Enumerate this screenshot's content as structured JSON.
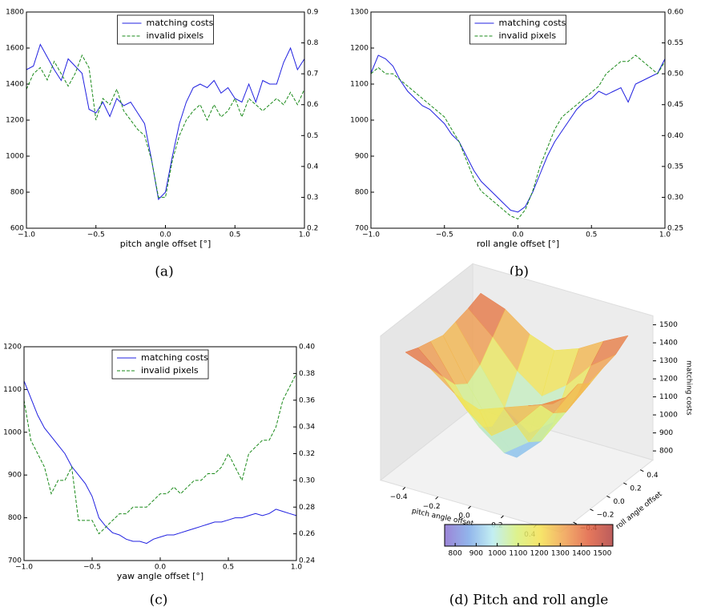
{
  "chart_data": [
    {
      "type": "line",
      "caption": "(a)",
      "xlabel": "pitch angle offset [°]",
      "legend": "upper center",
      "xlim": [
        -1,
        1
      ],
      "xticks": [
        {
          "value": -1,
          "label": "−1.0"
        },
        {
          "value": -0.5,
          "label": "−0.5"
        },
        {
          "value": 0,
          "label": "0.0"
        },
        {
          "value": 0.5,
          "label": "0.5"
        },
        {
          "value": 1,
          "label": "1.0"
        }
      ],
      "ylim": [
        600,
        1800
      ],
      "yticks": [
        600,
        800,
        1000,
        1200,
        1400,
        1600,
        1800
      ],
      "y2lim": [
        0.2,
        0.9
      ],
      "y2ticks": [
        0.2,
        0.3,
        0.4,
        0.5,
        0.6,
        0.7,
        0.8,
        0.9
      ],
      "x": [
        -1,
        -0.95,
        -0.9,
        -0.85,
        -0.8,
        -0.75,
        -0.7,
        -0.65,
        -0.6,
        -0.55,
        -0.5,
        -0.45,
        -0.4,
        -0.35,
        -0.3,
        -0.25,
        -0.2,
        -0.15,
        -0.1,
        -0.05,
        0,
        0.05,
        0.1,
        0.15,
        0.2,
        0.25,
        0.3,
        0.35,
        0.4,
        0.45,
        0.5,
        0.55,
        0.6,
        0.65,
        0.7,
        0.75,
        0.8,
        0.85,
        0.9,
        0.95,
        1
      ],
      "series": [
        {
          "name": "matching costs",
          "color": "#2020e0",
          "linestyle": "solid",
          "values": [
            1480,
            1500,
            1620,
            1550,
            1480,
            1420,
            1540,
            1500,
            1460,
            1260,
            1240,
            1300,
            1220,
            1320,
            1280,
            1300,
            1240,
            1180,
            980,
            760,
            800,
            1000,
            1180,
            1300,
            1380,
            1400,
            1380,
            1420,
            1350,
            1380,
            1320,
            1300,
            1400,
            1300,
            1420,
            1400,
            1400,
            1520,
            1600,
            1480,
            1540
          ]
        },
        {
          "name": "invalid pixels",
          "color": "#1a8a1a",
          "linestyle": "dashed",
          "axis": "y2",
          "values": [
            0.65,
            0.7,
            0.72,
            0.68,
            0.74,
            0.7,
            0.66,
            0.7,
            0.76,
            0.72,
            0.55,
            0.62,
            0.6,
            0.65,
            0.58,
            0.55,
            0.52,
            0.5,
            0.42,
            0.3,
            0.3,
            0.42,
            0.5,
            0.55,
            0.58,
            0.6,
            0.55,
            0.6,
            0.56,
            0.58,
            0.62,
            0.56,
            0.62,
            0.6,
            0.58,
            0.6,
            0.62,
            0.6,
            0.64,
            0.6,
            0.65
          ]
        }
      ]
    },
    {
      "type": "line",
      "caption": "(b)",
      "xlabel": "roll angle offset [°]",
      "legend": "upper center",
      "xlim": [
        -1,
        1
      ],
      "xticks": [
        {
          "value": -1,
          "label": "−1.0"
        },
        {
          "value": -0.5,
          "label": "−0.5"
        },
        {
          "value": 0,
          "label": "0.0"
        },
        {
          "value": 0.5,
          "label": "0.5"
        },
        {
          "value": 1,
          "label": "1.0"
        }
      ],
      "ylim": [
        700,
        1300
      ],
      "yticks": [
        700,
        800,
        900,
        1000,
        1100,
        1200,
        1300
      ],
      "y2lim": [
        0.25,
        0.6
      ],
      "y2ticks": [
        0.25,
        {
          "value": 0.3,
          "label": "0.30"
        },
        0.35,
        {
          "value": 0.4,
          "label": "0.40"
        },
        0.45,
        {
          "value": 0.5,
          "label": "0.50"
        },
        0.55,
        {
          "value": 0.6,
          "label": "0.60"
        }
      ],
      "x": [
        -1,
        -0.95,
        -0.9,
        -0.85,
        -0.8,
        -0.75,
        -0.7,
        -0.65,
        -0.6,
        -0.55,
        -0.5,
        -0.45,
        -0.4,
        -0.35,
        -0.3,
        -0.25,
        -0.2,
        -0.15,
        -0.1,
        -0.05,
        0,
        0.05,
        0.1,
        0.15,
        0.2,
        0.25,
        0.3,
        0.35,
        0.4,
        0.45,
        0.5,
        0.55,
        0.6,
        0.65,
        0.7,
        0.75,
        0.8,
        0.85,
        0.9,
        0.95,
        1
      ],
      "series": [
        {
          "name": "matching costs",
          "color": "#2020e0",
          "linestyle": "solid",
          "values": [
            1130,
            1180,
            1170,
            1150,
            1110,
            1080,
            1060,
            1040,
            1030,
            1010,
            990,
            960,
            940,
            900,
            860,
            830,
            810,
            790,
            770,
            750,
            745,
            760,
            800,
            850,
            900,
            940,
            970,
            1000,
            1030,
            1050,
            1060,
            1080,
            1070,
            1080,
            1090,
            1050,
            1100,
            1110,
            1120,
            1130,
            1170
          ]
        },
        {
          "name": "invalid pixels",
          "color": "#1a8a1a",
          "linestyle": "dashed",
          "axis": "y2",
          "values": [
            0.5,
            0.51,
            0.5,
            0.5,
            0.49,
            0.48,
            0.47,
            0.46,
            0.45,
            0.44,
            0.43,
            0.41,
            0.39,
            0.36,
            0.33,
            0.31,
            0.3,
            0.29,
            0.28,
            0.27,
            0.265,
            0.28,
            0.31,
            0.35,
            0.38,
            0.41,
            0.43,
            0.44,
            0.45,
            0.46,
            0.47,
            0.48,
            0.5,
            0.51,
            0.52,
            0.52,
            0.53,
            0.52,
            0.51,
            0.5,
            0.52
          ]
        }
      ]
    },
    {
      "type": "line",
      "caption": "(c)",
      "xlabel": "yaw angle offset [°]",
      "legend": "upper center",
      "xlim": [
        -1,
        1
      ],
      "xticks": [
        {
          "value": -1,
          "label": "−1.0"
        },
        {
          "value": -0.5,
          "label": "−0.5"
        },
        {
          "value": 0,
          "label": "0.0"
        },
        {
          "value": 0.5,
          "label": "0.5"
        },
        {
          "value": 1,
          "label": "1.0"
        }
      ],
      "ylim": [
        700,
        1200
      ],
      "yticks": [
        700,
        800,
        900,
        1000,
        1100,
        1200
      ],
      "y2lim": [
        0.24,
        0.4
      ],
      "y2ticks": [
        0.24,
        0.26,
        0.28,
        {
          "value": 0.3,
          "label": "0.30"
        },
        0.32,
        0.34,
        0.36,
        0.38,
        {
          "value": 0.4,
          "label": "0.40"
        }
      ],
      "x": [
        -1,
        -0.95,
        -0.9,
        -0.85,
        -0.8,
        -0.75,
        -0.7,
        -0.65,
        -0.6,
        -0.55,
        -0.5,
        -0.45,
        -0.4,
        -0.35,
        -0.3,
        -0.25,
        -0.2,
        -0.15,
        -0.1,
        -0.05,
        0,
        0.05,
        0.1,
        0.15,
        0.2,
        0.25,
        0.3,
        0.35,
        0.4,
        0.45,
        0.5,
        0.55,
        0.6,
        0.65,
        0.7,
        0.75,
        0.8,
        0.85,
        0.9,
        0.95,
        1
      ],
      "series": [
        {
          "name": "matching costs",
          "color": "#2020e0",
          "linestyle": "solid",
          "values": [
            1120,
            1080,
            1040,
            1010,
            990,
            970,
            950,
            920,
            900,
            880,
            850,
            800,
            780,
            765,
            760,
            750,
            745,
            745,
            740,
            750,
            755,
            760,
            760,
            765,
            770,
            775,
            780,
            785,
            790,
            790,
            795,
            800,
            800,
            805,
            810,
            805,
            810,
            820,
            815,
            810,
            805
          ]
        },
        {
          "name": "invalid pixels",
          "color": "#1a8a1a",
          "linestyle": "dashed",
          "axis": "y2",
          "values": [
            0.36,
            0.33,
            0.32,
            0.31,
            0.29,
            0.3,
            0.3,
            0.31,
            0.27,
            0.27,
            0.27,
            0.26,
            0.265,
            0.27,
            0.275,
            0.275,
            0.28,
            0.28,
            0.28,
            0.285,
            0.29,
            0.29,
            0.295,
            0.29,
            0.295,
            0.3,
            0.3,
            0.305,
            0.305,
            0.31,
            0.32,
            0.31,
            0.3,
            0.32,
            0.325,
            0.33,
            0.33,
            0.34,
            0.36,
            0.37,
            0.38
          ]
        }
      ]
    },
    {
      "type": "surface3d",
      "caption": "(d) Pitch and roll angle",
      "xlabel": "pitch angle offset",
      "ylabel": "roll angle offset",
      "zlabel": "matching costs",
      "xlim": [
        -0.55,
        0.55
      ],
      "ylim": [
        -0.55,
        0.55
      ],
      "zlim": [
        750,
        1550
      ],
      "xticks": [
        {
          "value": -0.4,
          "label": "−0.4"
        },
        {
          "value": -0.2,
          "label": "−0.2"
        },
        {
          "value": 0,
          "label": "0.0"
        },
        0.2,
        0.4
      ],
      "yticks": [
        {
          "value": -0.4,
          "label": "−0.4"
        },
        {
          "value": -0.2,
          "label": "−0.2"
        },
        {
          "value": 0,
          "label": "0.0"
        },
        0.2,
        0.4
      ],
      "zticks": [
        800,
        900,
        1000,
        1100,
        1200,
        1300,
        1400,
        1500
      ],
      "colorbar_ticks": [
        800,
        900,
        1000,
        1100,
        1200,
        1300,
        1400,
        1500
      ],
      "x": [
        -0.45,
        -0.3,
        -0.15,
        0,
        0.15,
        0.3,
        0.45
      ],
      "y": [
        -0.45,
        -0.3,
        -0.15,
        0,
        0.15,
        0.3,
        0.45
      ],
      "z": [
        [
          1450,
          1400,
          1300,
          1250,
          1300,
          1350,
          1400
        ],
        [
          1420,
          1300,
          1150,
          1050,
          1150,
          1300,
          1380
        ],
        [
          1400,
          1200,
          1000,
          900,
          1000,
          1200,
          1400
        ],
        [
          1380,
          1150,
          950,
          820,
          950,
          1150,
          1350
        ],
        [
          1400,
          1200,
          1000,
          900,
          1000,
          1200,
          1380
        ],
        [
          1420,
          1300,
          1150,
          1050,
          1150,
          1300,
          1400
        ],
        [
          1450,
          1400,
          1300,
          1250,
          1300,
          1380,
          1450
        ]
      ]
    }
  ]
}
